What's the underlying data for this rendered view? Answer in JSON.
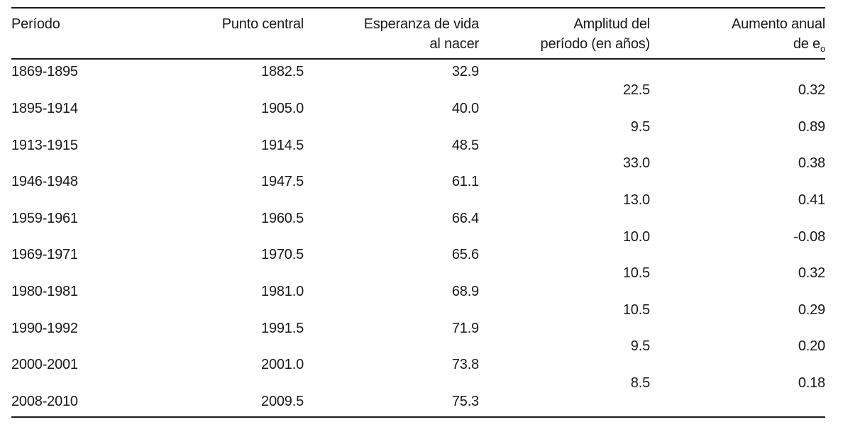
{
  "chart_data": {
    "type": "table",
    "columns": [
      {
        "label_lines": [
          "Período"
        ],
        "align": "left"
      },
      {
        "label_lines": [
          "Punto central"
        ],
        "align": "right"
      },
      {
        "label_lines": [
          "Esperanza de vida",
          "al nacer"
        ],
        "align": "right"
      },
      {
        "label_lines": [
          "Amplitud del",
          "período (en años)"
        ],
        "align": "right"
      },
      {
        "label_lines": [
          "Aumento anual",
          "de e"
        ],
        "subscript": "o",
        "align": "right"
      }
    ],
    "periods": [
      {
        "period": "1869-1895",
        "central_point": "1882.5",
        "life_expectancy_at_birth": "32.9"
      },
      {
        "period": "1895-1914",
        "central_point": "1905.0",
        "life_expectancy_at_birth": "40.0"
      },
      {
        "period": "1913-1915",
        "central_point": "1914.5",
        "life_expectancy_at_birth": "48.5"
      },
      {
        "period": "1946-1948",
        "central_point": "1947.5",
        "life_expectancy_at_birth": "61.1"
      },
      {
        "period": "1959-1961",
        "central_point": "1960.5",
        "life_expectancy_at_birth": "66.4"
      },
      {
        "period": "1969-1971",
        "central_point": "1970.5",
        "life_expectancy_at_birth": "65.6"
      },
      {
        "period": "1980-1981",
        "central_point": "1981.0",
        "life_expectancy_at_birth": "68.9"
      },
      {
        "period": "1990-1992",
        "central_point": "1991.5",
        "life_expectancy_at_birth": "71.9"
      },
      {
        "period": "2000-2001",
        "central_point": "2001.0",
        "life_expectancy_at_birth": "73.8"
      },
      {
        "period": "2008-2010",
        "central_point": "2009.5",
        "life_expectancy_at_birth": "75.3"
      }
    ],
    "intervals": [
      {
        "period_amplitude_years": "22.5",
        "annual_increase_e0": "0.32"
      },
      {
        "period_amplitude_years": "9.5",
        "annual_increase_e0": "0.89"
      },
      {
        "period_amplitude_years": "33.0",
        "annual_increase_e0": "0.38"
      },
      {
        "period_amplitude_years": "13.0",
        "annual_increase_e0": "0.41"
      },
      {
        "period_amplitude_years": "10.0",
        "annual_increase_e0": "-0.08"
      },
      {
        "period_amplitude_years": "10.5",
        "annual_increase_e0": "0.32"
      },
      {
        "period_amplitude_years": "10.5",
        "annual_increase_e0": "0.29"
      },
      {
        "period_amplitude_years": "9.5",
        "annual_increase_e0": "0.20"
      },
      {
        "period_amplitude_years": "8.5",
        "annual_increase_e0": "0.18"
      }
    ],
    "layout": {
      "interval_row_placement": "half-row offset between consecutive period rows",
      "rules": "horizontal only: above header, below header, below last row",
      "text_color": "#1a1a1a",
      "background": "#ffffff"
    }
  }
}
